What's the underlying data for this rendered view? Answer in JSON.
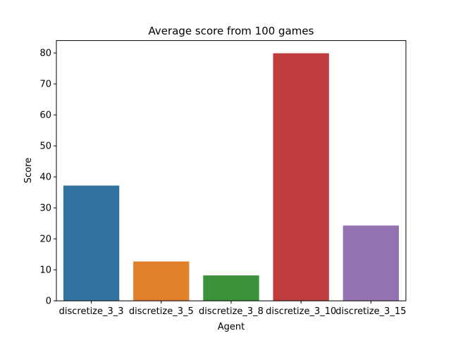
{
  "chart_data": {
    "type": "bar",
    "title": "Average score from 100 games",
    "xlabel": "Agent",
    "ylabel": "Score",
    "categories": [
      "discretize_3_3",
      "discretize_3_5",
      "discretize_3_8",
      "discretize_3_10",
      "discretize_3_15"
    ],
    "values": [
      37.2,
      12.7,
      8.2,
      79.9,
      24.3
    ],
    "colors": [
      "#3274a1",
      "#e1812c",
      "#3a923a",
      "#c03d3e",
      "#9372b2"
    ],
    "ylim": [
      0,
      84
    ],
    "yticks": [
      0,
      10,
      20,
      30,
      40,
      50,
      60,
      70,
      80
    ],
    "ytick_labels": [
      "0",
      "10",
      "20",
      "30",
      "40",
      "50",
      "60",
      "70",
      "80"
    ],
    "grid": false,
    "legend": "none"
  }
}
